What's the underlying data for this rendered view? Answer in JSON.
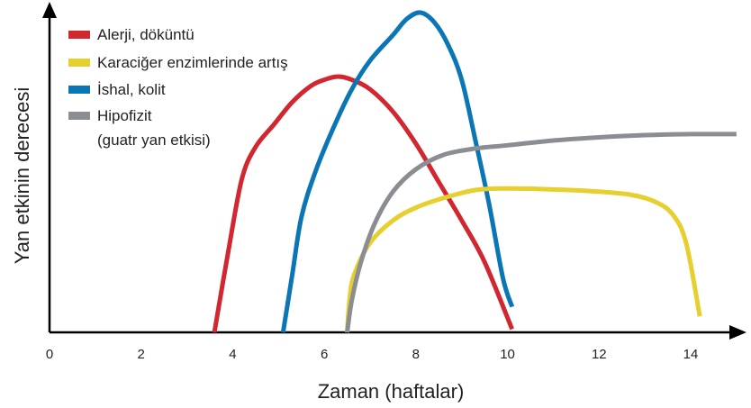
{
  "chart_data": {
    "type": "line",
    "title": "",
    "xlabel": "Zaman (haftalar)",
    "ylabel": "Yan etkinin derecesi",
    "xlim": [
      0,
      15
    ],
    "ylim": [
      0,
      1
    ],
    "x_ticks": [
      "0",
      "2",
      "4",
      "6",
      "8",
      "10",
      "12",
      "14"
    ],
    "grid": false,
    "legend_position": "top-left",
    "series": [
      {
        "name": "Alerji, döküntü",
        "color": "#d22630",
        "points": [
          [
            3.6,
            0.0
          ],
          [
            3.9,
            0.25
          ],
          [
            4.2,
            0.48
          ],
          [
            4.5,
            0.58
          ],
          [
            4.9,
            0.65
          ],
          [
            5.3,
            0.72
          ],
          [
            5.7,
            0.77
          ],
          [
            6.0,
            0.79
          ],
          [
            6.3,
            0.8
          ],
          [
            6.6,
            0.79
          ],
          [
            7.0,
            0.76
          ],
          [
            7.5,
            0.69
          ],
          [
            8.0,
            0.59
          ],
          [
            8.5,
            0.47
          ],
          [
            9.0,
            0.35
          ],
          [
            9.5,
            0.22
          ],
          [
            10.1,
            0.01
          ]
        ]
      },
      {
        "name": "Karaciğer enzimlerinde artış",
        "color": "#e6cf2e",
        "points": [
          [
            6.5,
            0.0
          ],
          [
            6.55,
            0.1
          ],
          [
            6.65,
            0.18
          ],
          [
            7.0,
            0.28
          ],
          [
            7.5,
            0.35
          ],
          [
            8.0,
            0.39
          ],
          [
            8.6,
            0.42
          ],
          [
            9.3,
            0.445
          ],
          [
            10.0,
            0.45
          ],
          [
            11.0,
            0.447
          ],
          [
            12.0,
            0.44
          ],
          [
            12.7,
            0.43
          ],
          [
            13.2,
            0.41
          ],
          [
            13.6,
            0.37
          ],
          [
            13.9,
            0.28
          ],
          [
            14.2,
            0.05
          ]
        ]
      },
      {
        "name": "İshal, kolit",
        "color": "#0b76b5",
        "points": [
          [
            5.1,
            0.0
          ],
          [
            5.3,
            0.18
          ],
          [
            5.5,
            0.36
          ],
          [
            5.8,
            0.5
          ],
          [
            6.2,
            0.64
          ],
          [
            6.6,
            0.76
          ],
          [
            7.0,
            0.85
          ],
          [
            7.5,
            0.93
          ],
          [
            7.8,
            0.98
          ],
          [
            8.1,
            1.0
          ],
          [
            8.4,
            0.97
          ],
          [
            8.7,
            0.9
          ],
          [
            9.0,
            0.79
          ],
          [
            9.3,
            0.6
          ],
          [
            9.6,
            0.4
          ],
          [
            9.9,
            0.17
          ],
          [
            10.1,
            0.08
          ]
        ]
      },
      {
        "name": "Hipofizit\n(guatr yan etkisi)",
        "name_lines": [
          "Hipofizit",
          "(guatr yan etkisi)"
        ],
        "color": "#8a8d92",
        "points": [
          [
            6.5,
            0.0
          ],
          [
            6.6,
            0.1
          ],
          [
            6.8,
            0.22
          ],
          [
            7.1,
            0.34
          ],
          [
            7.5,
            0.44
          ],
          [
            8.0,
            0.51
          ],
          [
            8.6,
            0.555
          ],
          [
            9.3,
            0.575
          ],
          [
            10.0,
            0.585
          ],
          [
            11.0,
            0.6
          ],
          [
            12.0,
            0.61
          ],
          [
            13.0,
            0.617
          ],
          [
            14.0,
            0.62
          ],
          [
            15.0,
            0.62
          ]
        ]
      }
    ]
  }
}
